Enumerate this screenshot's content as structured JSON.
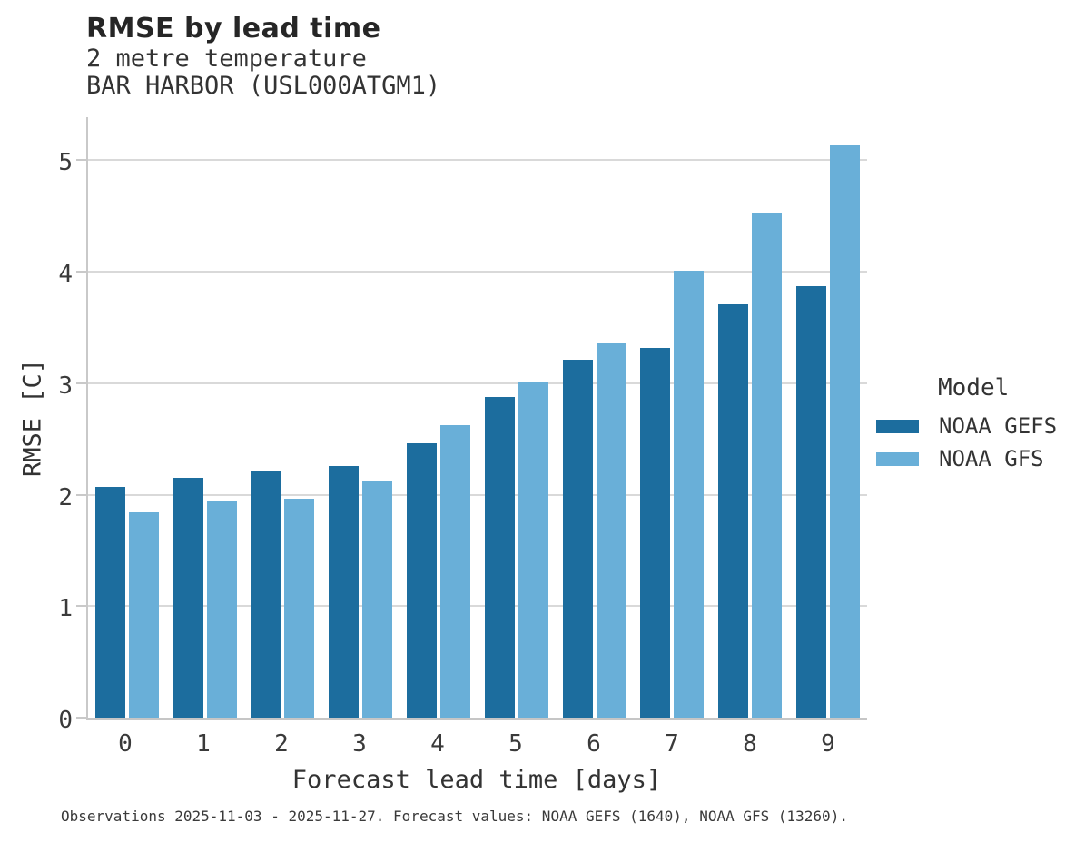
{
  "header": {
    "title": "RMSE by lead time",
    "subtitle_line1": "2 metre temperature",
    "subtitle_line2": "BAR HARBOR (USL000ATGM1)"
  },
  "chart_data": {
    "type": "bar",
    "title": "RMSE by lead time",
    "subtitle": [
      "2 metre temperature",
      "BAR HARBOR (USL000ATGM1)"
    ],
    "categories": [
      "0",
      "1",
      "2",
      "3",
      "4",
      "5",
      "6",
      "7",
      "8",
      "9"
    ],
    "series": [
      {
        "name": "NOAA GEFS",
        "color": "#1c6d9e",
        "values": [
          2.07,
          2.15,
          2.21,
          2.26,
          2.46,
          2.88,
          3.21,
          3.32,
          3.71,
          3.87
        ]
      },
      {
        "name": "NOAA GFS",
        "color": "#69afd8",
        "values": [
          1.84,
          1.94,
          1.96,
          2.12,
          2.62,
          3.01,
          3.36,
          4.01,
          4.53,
          5.13
        ]
      }
    ],
    "xlabel": "Forecast lead time [days]",
    "ylabel": "RMSE [C]",
    "ylim": [
      0,
      5.41
    ],
    "yticks": [
      0,
      1,
      2,
      3,
      4,
      5
    ],
    "grid": true,
    "legend": {
      "title": "Model",
      "position": "right"
    }
  },
  "colors": {
    "spine": "#c9c9c9",
    "gridline": "#d9d9d9",
    "text": "#333333"
  },
  "footer": {
    "note": "Observations 2025-11-03 - 2025-11-27. Forecast values: NOAA GEFS (1640), NOAA GFS (13260)."
  }
}
